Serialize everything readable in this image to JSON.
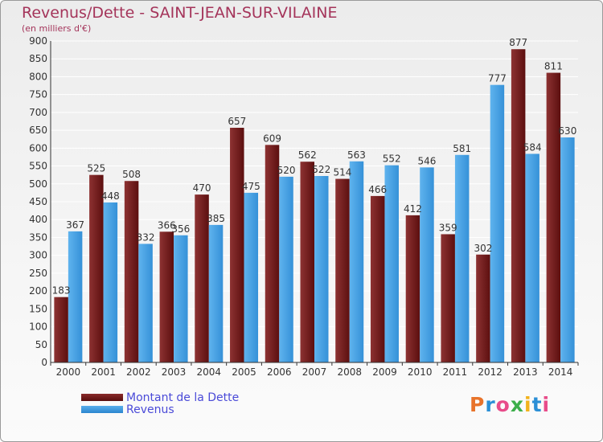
{
  "header": {
    "title": "Revenus/Dette - SAINT-JEAN-SUR-VILAINE",
    "subtitle": "(en milliers d'€)"
  },
  "legend": {
    "debt_label": "Montant de la Dette",
    "revenue_label": "Revenus"
  },
  "logo": {
    "text": "Proxiti",
    "letters": [
      {
        "char": "P",
        "color": "#e8732a"
      },
      {
        "char": "r",
        "color": "#2b8fd6"
      },
      {
        "char": "o",
        "color": "#e84c8a"
      },
      {
        "char": "x",
        "color": "#3cae4a"
      },
      {
        "char": "i",
        "color": "#f2b21c"
      },
      {
        "char": "t",
        "color": "#2b8fd6"
      },
      {
        "char": "i",
        "color": "#e84c8a"
      }
    ]
  },
  "colors": {
    "debt_top": "#8a2b2b",
    "debt_bottom": "#5a0d0d",
    "revenue_top": "#5aaeea",
    "revenue_bottom": "#2b86cf",
    "title": "#a4345a",
    "legend_text": "#4a4ad8"
  },
  "chart_data": {
    "type": "bar",
    "categories": [
      "2000",
      "2001",
      "2002",
      "2003",
      "2004",
      "2005",
      "2006",
      "2007",
      "2008",
      "2009",
      "2010",
      "2011",
      "2012",
      "2013",
      "2014"
    ],
    "series": [
      {
        "name": "Montant de la Dette",
        "values": [
          183,
          525,
          508,
          366,
          470,
          657,
          609,
          562,
          514,
          466,
          412,
          359,
          302,
          877,
          811
        ]
      },
      {
        "name": "Revenus",
        "values": [
          367,
          448,
          332,
          356,
          385,
          475,
          520,
          522,
          563,
          552,
          546,
          581,
          777,
          584,
          630
        ]
      }
    ],
    "title": "Revenus/Dette - SAINT-JEAN-SUR-VILAINE",
    "ylabel": "(en milliers d'€)",
    "ylim": [
      0,
      900
    ],
    "yticks": [
      "0",
      "50",
      "100",
      "150",
      "200",
      "250",
      "300",
      "350",
      "400",
      "450",
      "500",
      "550",
      "600",
      "650",
      "700",
      "750",
      "800",
      "850",
      "900"
    ],
    "grid": true,
    "legend_position": "bottom-left"
  }
}
